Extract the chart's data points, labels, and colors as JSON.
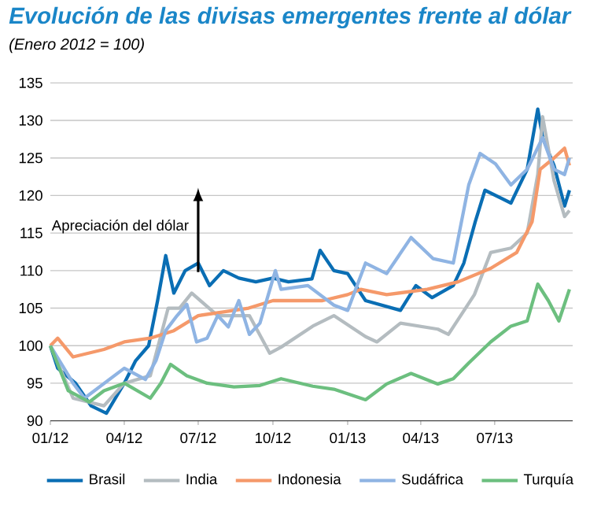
{
  "chart_data": {
    "type": "line",
    "title": "Evolución de las divisas emergentes frente al dólar",
    "subtitle": "(Enero 2012 = 100)",
    "xlim": [
      "2012-01-01",
      "2013-10-05"
    ],
    "ylim": [
      90,
      135
    ],
    "xticks": [
      {
        "value": "2012-01-01",
        "label": "01/12"
      },
      {
        "value": "2012-04-01",
        "label": "04/12"
      },
      {
        "value": "2012-07-01",
        "label": "07/12"
      },
      {
        "value": "2012-10-01",
        "label": "10/12"
      },
      {
        "value": "2013-01-01",
        "label": "01/13"
      },
      {
        "value": "2013-04-01",
        "label": "04/13"
      },
      {
        "value": "2013-07-01",
        "label": "07/13"
      }
    ],
    "yticks": [
      90,
      95,
      100,
      105,
      110,
      115,
      120,
      125,
      130,
      135
    ],
    "grid": "y",
    "legend": "bottom",
    "annotations": [
      "Apreciación del dólar"
    ],
    "series": [
      {
        "name": "Brasil",
        "color": "#0a6eb4",
        "x": [
          "2012-01-01",
          "2012-01-10",
          "2012-02-01",
          "2012-02-20",
          "2012-03-10",
          "2012-04-01",
          "2012-04-15",
          "2012-05-01",
          "2012-05-12",
          "2012-05-22",
          "2012-06-01",
          "2012-06-15",
          "2012-07-01",
          "2012-07-15",
          "2012-08-01",
          "2012-08-20",
          "2012-09-10",
          "2012-10-01",
          "2012-10-20",
          "2012-11-18",
          "2012-11-28",
          "2012-12-15",
          "2013-01-01",
          "2013-01-23",
          "2013-03-07",
          "2013-03-26",
          "2013-04-15",
          "2013-05-11",
          "2013-05-24",
          "2013-06-07",
          "2013-06-19",
          "2013-07-21",
          "2013-08-10",
          "2013-08-23",
          "2013-08-29",
          "2013-09-12",
          "2013-09-25",
          "2013-10-01"
        ],
        "values": [
          100,
          97,
          95,
          92,
          91,
          95,
          98,
          100,
          106,
          112,
          107,
          110,
          111,
          108,
          110,
          109,
          108.5,
          109,
          108.5,
          108.9,
          112.7,
          110,
          109.6,
          106,
          104.7,
          108,
          106.4,
          108,
          111,
          116.5,
          120.7,
          119,
          123.5,
          131.5,
          127.7,
          124,
          118.6,
          120.7
        ]
      },
      {
        "name": "India",
        "color": "#b4bcc0",
        "x": [
          "2012-01-01",
          "2012-01-29",
          "2012-03-07",
          "2012-04-01",
          "2012-05-03",
          "2012-05-25",
          "2012-06-08",
          "2012-06-23",
          "2012-07-25",
          "2012-09-02",
          "2012-09-27",
          "2012-10-11",
          "2012-11-19",
          "2012-12-15",
          "2013-01-23",
          "2013-02-06",
          "2013-03-07",
          "2013-04-22",
          "2013-05-05",
          "2013-06-06",
          "2013-06-26",
          "2013-07-21",
          "2013-08-10",
          "2013-08-23",
          "2013-08-29",
          "2013-09-12",
          "2013-09-25",
          "2013-10-01"
        ],
        "values": [
          100,
          93,
          92,
          95,
          96,
          105,
          105,
          107,
          104,
          104,
          99,
          99.8,
          102.6,
          104,
          101.2,
          100.5,
          103,
          102.2,
          101.5,
          106.8,
          112.4,
          113,
          115,
          122.8,
          130.5,
          122,
          117.2,
          118
        ]
      },
      {
        "name": "Indonesia",
        "color": "#f5996a",
        "x": [
          "2012-01-01",
          "2012-01-10",
          "2012-01-29",
          "2012-03-07",
          "2012-04-01",
          "2012-05-03",
          "2012-06-01",
          "2012-07-01",
          "2012-08-01",
          "2012-09-01",
          "2012-10-01",
          "2012-12-01",
          "2013-01-01",
          "2013-01-17",
          "2013-02-18",
          "2013-04-09",
          "2013-05-17",
          "2013-06-26",
          "2013-07-28",
          "2013-08-16",
          "2013-08-26",
          "2013-09-12",
          "2013-09-25",
          "2013-10-01"
        ],
        "values": [
          100,
          101,
          98.5,
          99.5,
          100.5,
          101,
          102,
          104,
          104.5,
          105,
          106,
          106,
          106.8,
          107.5,
          106.8,
          107.5,
          108.5,
          110.3,
          112.4,
          116.5,
          123.5,
          125,
          126.3,
          124
        ]
      },
      {
        "name": "Sudáfrica",
        "color": "#8fb4e3",
        "x": [
          "2012-01-01",
          "2012-01-29",
          "2012-02-12",
          "2012-04-01",
          "2012-04-27",
          "2012-05-10",
          "2012-05-22",
          "2012-06-05",
          "2012-06-17",
          "2012-06-29",
          "2012-07-12",
          "2012-07-25",
          "2012-08-07",
          "2012-08-20",
          "2012-09-02",
          "2012-09-15",
          "2012-10-04",
          "2012-10-11",
          "2012-11-13",
          "2012-12-15",
          "2013-01-01",
          "2013-01-23",
          "2013-02-18",
          "2013-03-20",
          "2013-04-16",
          "2013-05-11",
          "2013-05-30",
          "2013-06-13",
          "2013-07-02",
          "2013-07-21",
          "2013-08-10",
          "2013-08-29",
          "2013-09-12",
          "2013-09-25",
          "2013-10-01"
        ],
        "values": [
          100,
          95,
          93,
          97,
          95.5,
          98,
          102,
          104,
          105.5,
          100.5,
          101,
          104,
          102.5,
          106,
          101.5,
          103,
          110,
          107.5,
          108,
          105.4,
          104.7,
          111,
          109.6,
          114.4,
          111.6,
          111,
          121.4,
          125.6,
          124.2,
          121.4,
          123.5,
          127.7,
          123.5,
          122.8,
          125
        ]
      },
      {
        "name": "Turquía",
        "color": "#6cbf7f",
        "x": [
          "2012-01-01",
          "2012-01-23",
          "2012-02-18",
          "2012-03-07",
          "2012-04-01",
          "2012-05-03",
          "2012-05-16",
          "2012-05-28",
          "2012-06-17",
          "2012-07-12",
          "2012-08-14",
          "2012-09-15",
          "2012-10-11",
          "2012-11-19",
          "2012-12-15",
          "2013-01-23",
          "2013-02-18",
          "2013-03-20",
          "2013-04-22",
          "2013-05-11",
          "2013-05-30",
          "2013-06-26",
          "2013-07-21",
          "2013-08-10",
          "2013-08-23",
          "2013-09-05",
          "2013-09-18",
          "2013-10-01"
        ],
        "values": [
          100,
          94,
          92.5,
          94,
          95,
          93,
          95,
          97.5,
          96,
          95,
          94.5,
          94.7,
          95.6,
          94.6,
          94.2,
          92.8,
          94.9,
          96.3,
          94.9,
          95.6,
          97.7,
          100.5,
          102.6,
          103.3,
          108.2,
          106,
          103.3,
          107.5
        ]
      }
    ]
  }
}
